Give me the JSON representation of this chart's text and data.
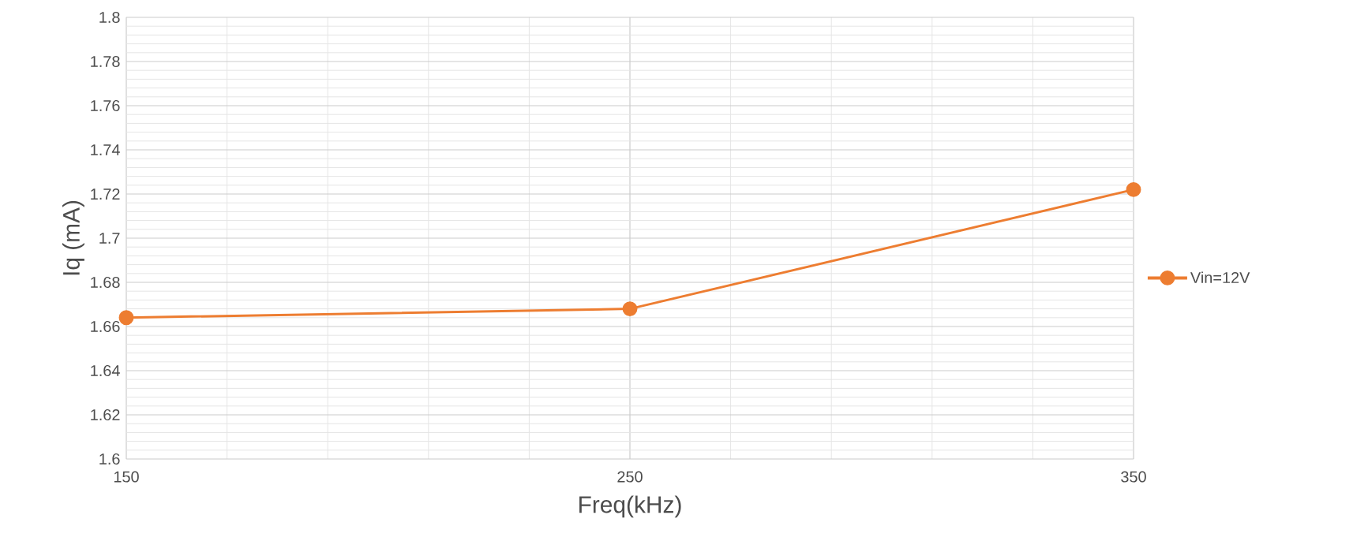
{
  "chart_data": {
    "type": "line",
    "xlabel": "Freq(kHz)",
    "ylabel": "Iq (mA)",
    "x": [
      150,
      250,
      350
    ],
    "series": [
      {
        "name": "Vin=12V",
        "color": "#ed7d31",
        "values": [
          1.664,
          1.668,
          1.722
        ]
      }
    ],
    "xlim": [
      150,
      350
    ],
    "xticks": [
      150,
      250,
      350
    ],
    "ylim": [
      1.6,
      1.8
    ],
    "yticks": [
      1.6,
      1.62,
      1.64,
      1.66,
      1.68,
      1.7,
      1.72,
      1.74,
      1.76,
      1.78,
      1.8
    ],
    "grid": true,
    "legend": "right",
    "marker": "circle",
    "line_style": "solid"
  }
}
